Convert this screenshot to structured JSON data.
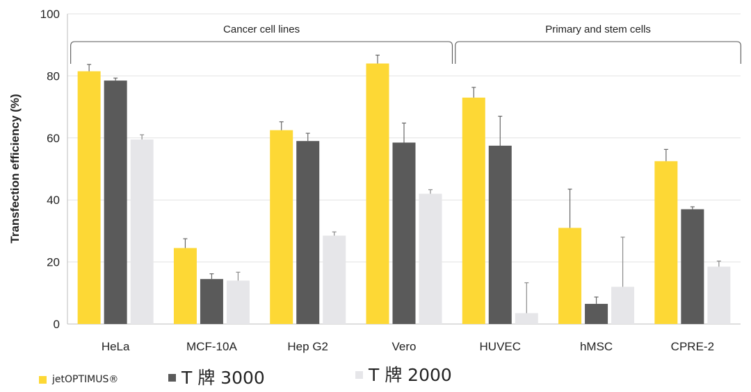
{
  "chart_data": {
    "type": "bar",
    "ylabel": "Transfection efficiency (%)",
    "ylim": [
      0,
      100
    ],
    "yticks": [
      "0",
      "20",
      "40",
      "60",
      "80",
      "100"
    ],
    "grid": true,
    "categories": [
      "HeLa",
      "MCF-10A",
      "Hep G2",
      "Vero",
      "HUVEC",
      "hMSC",
      "CPRE-2"
    ],
    "groups": [
      {
        "label": "Cancer cell lines",
        "from": 0,
        "to": 3
      },
      {
        "label": "Primary and stem cells",
        "from": 4,
        "to": 6
      }
    ],
    "series": [
      {
        "name": "jetOPTIMUS®",
        "color": "#FDD835",
        "values": [
          81.5,
          24.5,
          62.5,
          84,
          73,
          31,
          52.5
        ],
        "errors": [
          2.2,
          3.0,
          2.7,
          2.7,
          3.3,
          12.5,
          3.8
        ]
      },
      {
        "name": "T 牌 3000",
        "color": "#5a5a5a",
        "values": [
          78.5,
          14.5,
          59,
          58.5,
          57.5,
          6.5,
          37
        ],
        "errors": [
          0.8,
          1.7,
          2.5,
          6.3,
          9.5,
          2.2,
          0.8
        ]
      },
      {
        "name": "T 牌 2000",
        "color": "#E6E6E9",
        "values": [
          59.5,
          14,
          28.5,
          42,
          3.5,
          12,
          18.5
        ],
        "errors": [
          1.5,
          2.7,
          1.2,
          1.3,
          9.8,
          16.0,
          1.8
        ]
      }
    ]
  }
}
